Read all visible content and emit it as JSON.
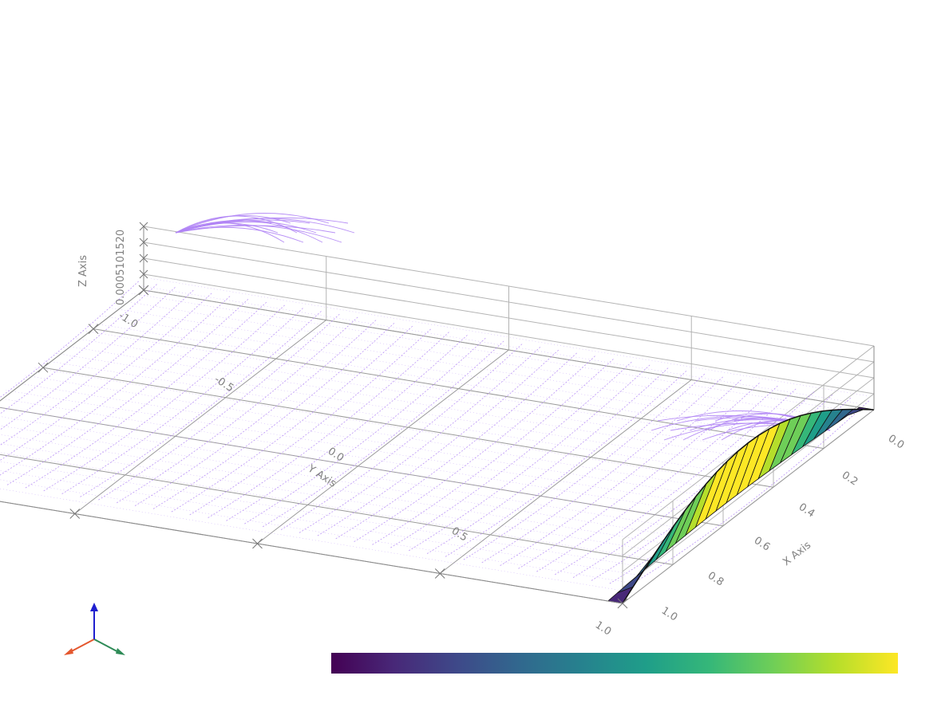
{
  "chart_data": {
    "type": "surface",
    "axes": {
      "x": {
        "title": "X Axis",
        "range": [
          0.0,
          1.0
        ],
        "ticks": [
          "0.0",
          "0.2",
          "0.4",
          "0.6",
          "0.8",
          "1.0"
        ]
      },
      "y": {
        "title": "Y Axis",
        "range": [
          -1.0,
          1.0
        ],
        "ticks": [
          "-1.0",
          "-0.5",
          "0.0",
          "0.5",
          "1.0"
        ]
      },
      "z": {
        "title": "Z Axis",
        "range": [
          0.0,
          0.02
        ],
        "ticks_text": "0.0005101520"
      }
    },
    "surface": {
      "description_free": true,
      "x_range": [
        0.0,
        1.0
      ],
      "y_at": -1.0,
      "z_max": 0.02,
      "colormap": "viridis"
    },
    "streamlines": {
      "color": "#b084f5"
    },
    "grid": true,
    "colorbar": {
      "colormap": "viridis",
      "stops": [
        "#440154",
        "#482878",
        "#3e4989",
        "#31688e",
        "#26828e",
        "#1f9e89",
        "#35b779",
        "#6ece58",
        "#b5de2b",
        "#fde725"
      ],
      "placement": "bottom"
    },
    "orientation_widget": {
      "x_color": "#e4572e",
      "y_color": "#2e8b57",
      "z_color": "#1f1fcf"
    }
  }
}
